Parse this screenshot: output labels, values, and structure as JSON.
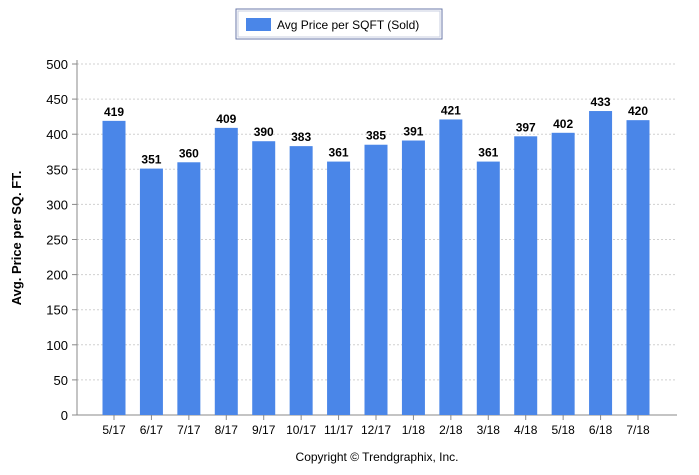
{
  "chart_data": {
    "type": "bar",
    "categories": [
      "5/17",
      "6/17",
      "7/17",
      "8/17",
      "9/17",
      "10/17",
      "11/17",
      "12/17",
      "1/18",
      "2/18",
      "3/18",
      "4/18",
      "5/18",
      "6/18",
      "7/18"
    ],
    "series": [
      {
        "name": "Avg Price per SQFT (Sold)",
        "values": [
          419,
          351,
          360,
          409,
          390,
          383,
          361,
          385,
          391,
          421,
          361,
          397,
          402,
          433,
          420
        ]
      }
    ],
    "ylabel": "Avg. Price per SQ. FT.",
    "xlabel": "",
    "ylim": [
      0,
      500
    ],
    "yticks": [
      0,
      50,
      100,
      150,
      200,
      250,
      300,
      350,
      400,
      450,
      500
    ],
    "grid": true,
    "legend_position": "top-center",
    "bar_color": "#4a86e8"
  },
  "footer": {
    "copyright": "Copyright © Trendgraphix, Inc."
  }
}
